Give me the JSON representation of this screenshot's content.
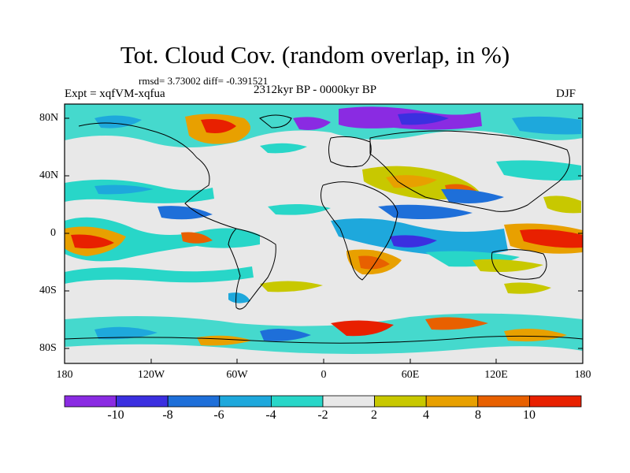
{
  "title": "Tot. Cloud Cov. (random overlap, in %)",
  "stats": "rmsd= 3.73002  diff= -0.391521",
  "experiment": "Expt = xqfVM-xqfua",
  "period": "2312kyr BP - 0000kyr BP",
  "season": "DJF",
  "axes": {
    "y_ticks": [
      "80N",
      "40N",
      "0",
      "40S",
      "80S"
    ],
    "x_ticks": [
      "180",
      "120W",
      "60W",
      "0",
      "60E",
      "120E",
      "180"
    ]
  },
  "colorbar": {
    "labels": [
      "-10",
      "-8",
      "-6",
      "-4",
      "-2",
      "2",
      "4",
      "8",
      "10"
    ],
    "colors": [
      "#8a2be2",
      "#3b2fe0",
      "#1e6fd9",
      "#1ea8dc",
      "#28d6c8",
      "#e8e8e8",
      "#c8c800",
      "#e8a000",
      "#e86000",
      "#e82000"
    ]
  },
  "map_colors": {
    "land_outline": "#000000",
    "neutral": "#e8e8e8"
  }
}
